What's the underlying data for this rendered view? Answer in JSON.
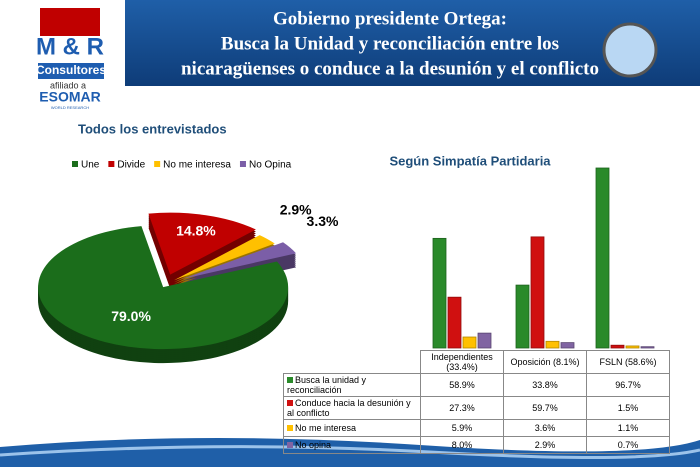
{
  "header": {
    "title": [
      "Gobierno presidente Ortega:",
      "Busca la Unidad y reconciliación entre los",
      "nicaragüenses o conduce a la desunión y el conflicto"
    ],
    "logo": {
      "name": "M & R",
      "sub": "Consultores",
      "affiliate": "afiliado a",
      "org": "ESOMAR",
      "org_sub": "WORLD RESEARCH"
    }
  },
  "chart_data": [
    {
      "type": "pie",
      "title": "Todos los entrevistados",
      "categories": [
        "Une",
        "Divide",
        "No me interesa",
        "No Opina"
      ],
      "values": [
        79.0,
        14.8,
        2.9,
        3.3
      ],
      "value_labels": [
        "79.0%",
        "14.8%",
        "2.9%",
        "3.3%"
      ],
      "colors": [
        "#1b6d1b",
        "#c00000",
        "#ffc000",
        "#7b5ea7"
      ]
    },
    {
      "type": "bar",
      "title": "Según Simpatía Partidaria",
      "categories": [
        "Independientes (33.4%)",
        "Oposición (8.1%)",
        "FSLN (58.6%)"
      ],
      "series": [
        {
          "name": "Busca la unidad y reconciliación",
          "color": "#2a8a2a",
          "values": [
            58.9,
            33.8,
            96.7
          ],
          "value_labels": [
            "58.9%",
            "33.8%",
            "96.7%"
          ]
        },
        {
          "name": "Conduce hacia la desunión y al conflicto",
          "color": "#d01010",
          "values": [
            27.3,
            59.7,
            1.5
          ],
          "value_labels": [
            "27.3%",
            "59.7%",
            "1.5%"
          ]
        },
        {
          "name": "No me interesa",
          "color": "#ffc000",
          "values": [
            5.9,
            3.6,
            1.1
          ],
          "value_labels": [
            "5.9%",
            "3.6%",
            "1.1%"
          ]
        },
        {
          "name": "No opina",
          "color": "#8064a2",
          "values": [
            8.0,
            2.9,
            0.7
          ],
          "value_labels": [
            "8.0%",
            "2.9%",
            "0.7%"
          ]
        }
      ]
    }
  ]
}
